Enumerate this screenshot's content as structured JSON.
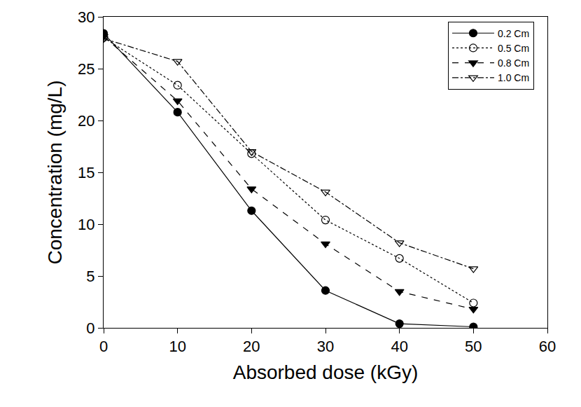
{
  "chart_data": {
    "type": "line",
    "x_label": "Absorbed dose (kGy)",
    "y_label": "Concentration (mg/L)",
    "x": [
      0,
      10,
      20,
      30,
      40,
      50
    ],
    "series": [
      {
        "name": "0.2 Cm",
        "color": "#000000",
        "marker": "circle",
        "line_style": "solid",
        "values": [
          28.4,
          20.8,
          11.3,
          3.6,
          0.4,
          0.1
        ]
      },
      {
        "name": "0.5 Cm",
        "color": "#000000",
        "marker": "circle-open",
        "line_style": "dot",
        "values": [
          28.0,
          23.4,
          16.8,
          10.4,
          6.7,
          2.4
        ]
      },
      {
        "name": "0.8 Cm",
        "color": "#000000",
        "marker": "triangle-down",
        "line_style": "dash",
        "values": [
          28.1,
          21.9,
          13.4,
          8.1,
          3.5,
          1.8
        ]
      },
      {
        "name": "1.0 Cm",
        "color": "#000000",
        "marker": "triangle-down-open",
        "line_style": "dashdot",
        "values": [
          27.9,
          25.7,
          17.0,
          13.1,
          8.2,
          5.7
        ]
      }
    ],
    "xlim": [
      0,
      60
    ],
    "xticks": [
      0,
      10,
      20,
      30,
      40,
      50,
      60
    ],
    "ylim": [
      0,
      30
    ],
    "yticks": [
      0,
      5,
      10,
      15,
      20,
      25,
      30
    ],
    "grid": false,
    "legend": "top right"
  }
}
